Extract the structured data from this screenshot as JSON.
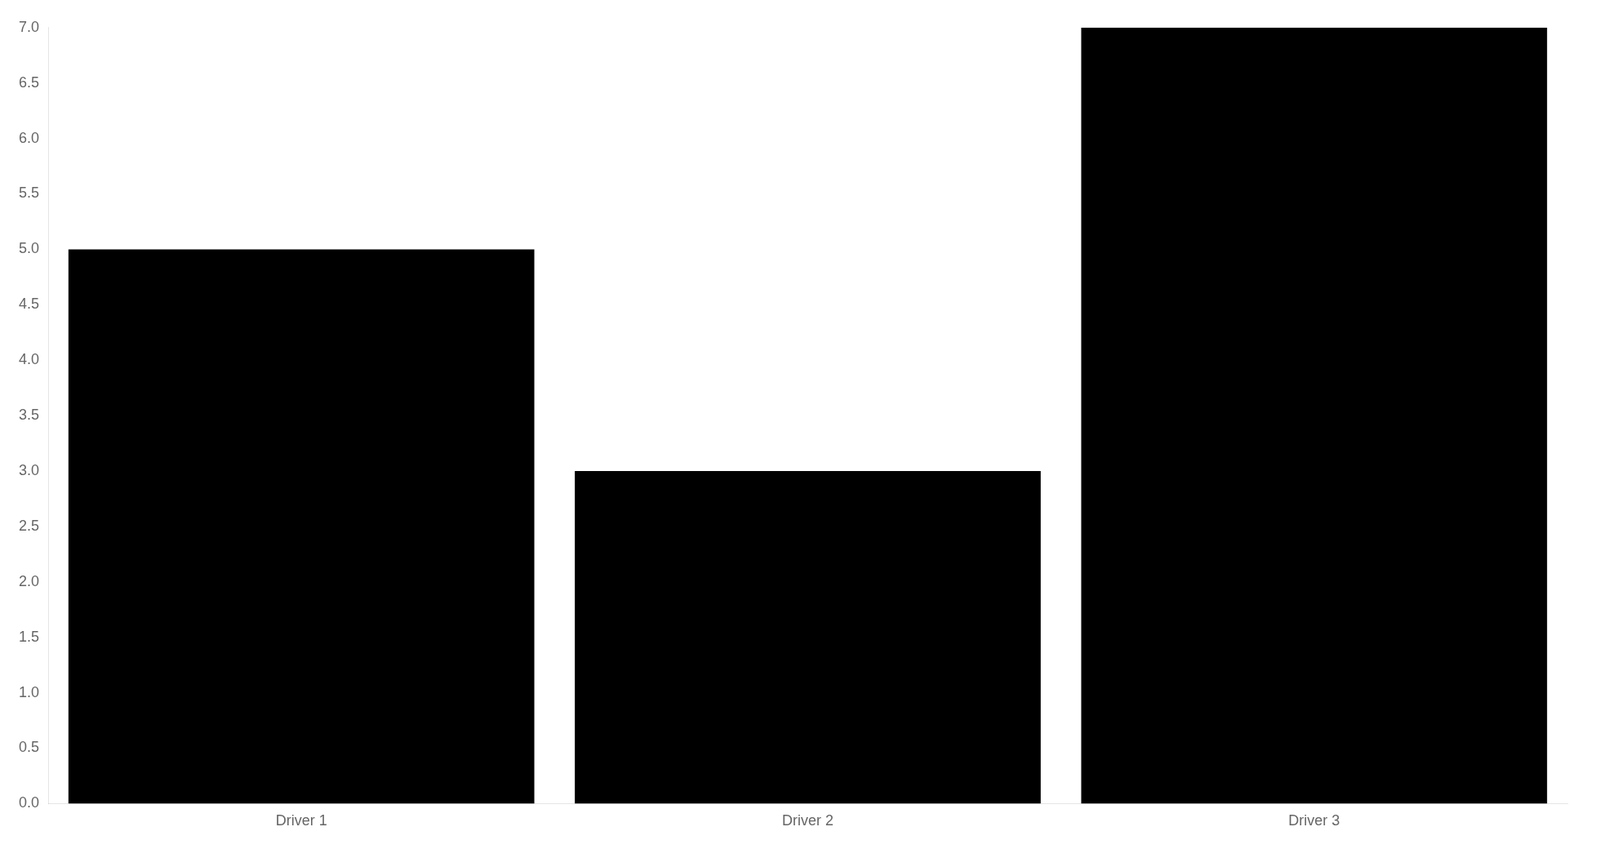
{
  "chart_data": {
    "type": "bar",
    "categories": [
      "Driver 1",
      "Driver 2",
      "Driver 3"
    ],
    "values": [
      5.0,
      3.0,
      7.0
    ],
    "color": "#000000",
    "ylim": [
      0.0,
      7.0
    ],
    "yticks": [
      {
        "value": 0.0,
        "label": "0.0"
      },
      0.5,
      {
        "value": 1.0,
        "label": "1.0"
      },
      1.5,
      {
        "value": 2.0,
        "label": "2.0"
      },
      2.5,
      {
        "value": 3.0,
        "label": "3.0"
      },
      3.5,
      {
        "value": 4.0,
        "label": "4.0"
      },
      4.5,
      {
        "value": 5.0,
        "label": "5.0"
      },
      5.5,
      {
        "value": 6.0,
        "label": "6.0"
      },
      6.5,
      {
        "value": 7.0,
        "label": "7.0"
      }
    ],
    "grid": false
  }
}
